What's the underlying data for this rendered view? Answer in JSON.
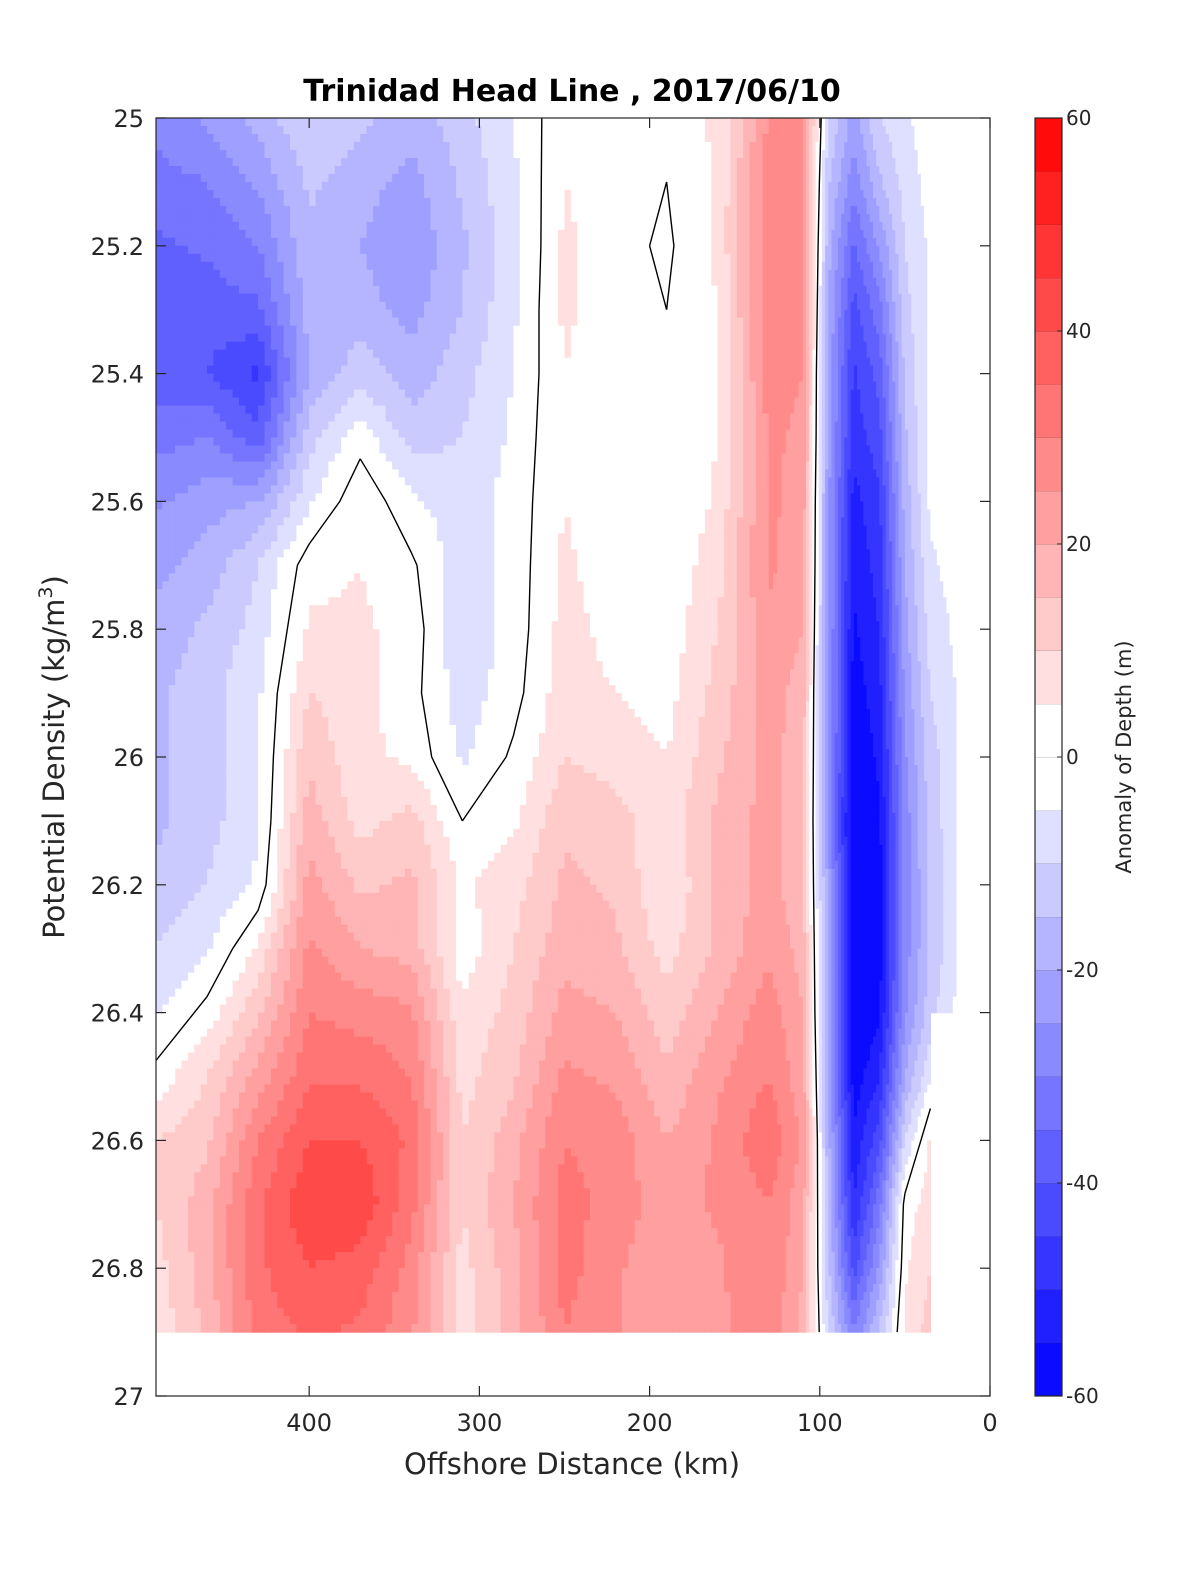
{
  "chart_data": {
    "type": "heatmap",
    "subtype": "filled-contour",
    "title": "Trinidad Head Line , 2017/06/10",
    "xlabel": "Offshore Distance (km)",
    "ylabel_main": "Potential Density (kg/m",
    "ylabel_sup": "3",
    "ylabel_end": ")",
    "colorbar_label": "Anomaly of Depth (m)",
    "xlim": [
      490,
      0
    ],
    "x_reversed": true,
    "ylim": [
      25,
      27
    ],
    "y_reversed": true,
    "x_ticks": [
      400,
      300,
      200,
      100,
      0
    ],
    "y_ticks": [
      25,
      25.2,
      25.4,
      25.6,
      25.8,
      26,
      26.2,
      26.4,
      26.6,
      26.8,
      27
    ],
    "y_tick_labels": [
      "25",
      "25.2",
      "25.4",
      "25.6",
      "25.8",
      "26",
      "26.2",
      "26.4",
      "26.6",
      "26.8",
      "27"
    ],
    "colorbar": {
      "range": [
        -60,
        60
      ],
      "levels": 24,
      "tick_values": [
        -60,
        -40,
        -20,
        0,
        20,
        40,
        60
      ],
      "tick_labels": [
        "-60",
        "-40",
        "-20",
        "0",
        "20",
        "40",
        "60"
      ],
      "colormap": "blue-white-red",
      "min_color": "#0000ff",
      "mid_color": "#ffffff",
      "max_color": "#ff0000"
    },
    "zero_contour_color": "#000000",
    "data_extent": {
      "x_min": 20,
      "x_max": 490,
      "y_min": 25,
      "y_max": 26.9
    },
    "x": [
      490,
      460,
      430,
      400,
      370,
      340,
      310,
      280,
      250,
      220,
      190,
      160,
      130,
      110,
      95,
      80,
      65,
      50,
      35,
      20
    ],
    "y": [
      25.0,
      25.1,
      25.2,
      25.3,
      25.4,
      25.5,
      25.6,
      25.7,
      25.8,
      25.9,
      26.0,
      26.1,
      26.2,
      26.3,
      26.4,
      26.5,
      26.6,
      26.7,
      26.8,
      26.9
    ],
    "z": [
      [
        -28,
        -24,
        -18,
        -10,
        -14,
        -18,
        -12,
        -5,
        4,
        3,
        1,
        6,
        26,
        26,
        -10,
        -22,
        -10,
        -6,
        -2,
        null
      ],
      [
        -32,
        -30,
        -24,
        -14,
        -18,
        -22,
        -14,
        -6,
        5,
        3,
        0,
        6,
        27,
        26,
        -14,
        -28,
        -16,
        -8,
        -3,
        null
      ],
      [
        -36,
        -34,
        -30,
        -16,
        -20,
        -24,
        -16,
        -7,
        6,
        2,
        -1,
        6,
        28,
        27,
        -18,
        -36,
        -24,
        -10,
        -4,
        null
      ],
      [
        -38,
        -38,
        -36,
        -18,
        -18,
        -22,
        -15,
        -6,
        6,
        2,
        0,
        5,
        28,
        26,
        -20,
        -42,
        -32,
        -12,
        -4,
        null
      ],
      [
        -38,
        -40,
        -46,
        -20,
        -12,
        -18,
        -12,
        -5,
        5,
        1,
        0,
        5,
        27,
        25,
        -22,
        -46,
        -38,
        -14,
        -4,
        null
      ],
      [
        -32,
        -30,
        -38,
        -12,
        -2,
        -12,
        -10,
        -4,
        5,
        1,
        0,
        5,
        26,
        24,
        -22,
        -48,
        -42,
        -16,
        -3,
        -2
      ],
      [
        -26,
        -22,
        -20,
        -6,
        4,
        -4,
        -8,
        -3,
        5,
        1,
        0,
        6,
        26,
        23,
        -24,
        -52,
        -46,
        -18,
        -4,
        -2
      ],
      [
        -22,
        -18,
        -10,
        3,
        5,
        1,
        -8,
        -3,
        6,
        2,
        1,
        8,
        26,
        22,
        -24,
        -54,
        -48,
        -20,
        -6,
        -3
      ],
      [
        -18,
        -14,
        -8,
        6,
        6,
        3,
        -9,
        -3,
        7,
        3,
        2,
        10,
        24,
        20,
        -24,
        -56,
        -50,
        -22,
        -8,
        -4
      ],
      [
        -16,
        -12,
        -6,
        10,
        7,
        2,
        -8,
        -2,
        8,
        5,
        3,
        12,
        22,
        18,
        -24,
        -58,
        -52,
        -24,
        -10,
        -5
      ],
      [
        -16,
        -12,
        -6,
        14,
        6,
        4,
        -6,
        1,
        10,
        8,
        5,
        14,
        22,
        17,
        -24,
        -60,
        -54,
        -26,
        -12,
        -6
      ],
      [
        -16,
        -12,
        -6,
        18,
        8,
        12,
        0,
        4,
        14,
        12,
        7,
        16,
        22,
        16,
        -24,
        -62,
        -56,
        -28,
        -13,
        -6
      ],
      [
        -14,
        -10,
        -4,
        22,
        14,
        16,
        4,
        8,
        16,
        14,
        5,
        16,
        22,
        16,
        -22,
        -62,
        -58,
        -28,
        -14,
        -6
      ],
      [
        -10,
        -6,
        6,
        26,
        20,
        18,
        2,
        10,
        18,
        16,
        8,
        16,
        24,
        18,
        -22,
        -62,
        -58,
        -28,
        -14,
        -6
      ],
      [
        -6,
        2,
        14,
        30,
        28,
        26,
        6,
        12,
        22,
        20,
        12,
        20,
        28,
        20,
        -22,
        -62,
        -56,
        -26,
        -12,
        -4
      ],
      [
        2,
        10,
        22,
        34,
        34,
        30,
        8,
        14,
        26,
        24,
        16,
        24,
        30,
        22,
        -20,
        -58,
        -50,
        -20,
        -6,
        null
      ],
      [
        10,
        14,
        30,
        40,
        40,
        34,
        10,
        18,
        30,
        28,
        20,
        26,
        34,
        24,
        -18,
        -54,
        -42,
        -10,
        6,
        null
      ],
      [
        10,
        18,
        34,
        44,
        44,
        32,
        10,
        20,
        32,
        28,
        22,
        26,
        30,
        22,
        -16,
        -50,
        -32,
        2,
        8,
        null
      ],
      [
        8,
        18,
        34,
        40,
        38,
        28,
        8,
        18,
        32,
        26,
        20,
        24,
        30,
        20,
        -14,
        -42,
        -24,
        4,
        10,
        null
      ],
      [
        6,
        16,
        32,
        36,
        34,
        26,
        8,
        18,
        30,
        26,
        20,
        24,
        28,
        18,
        -10,
        -30,
        -14,
        6,
        12,
        null
      ]
    ]
  }
}
